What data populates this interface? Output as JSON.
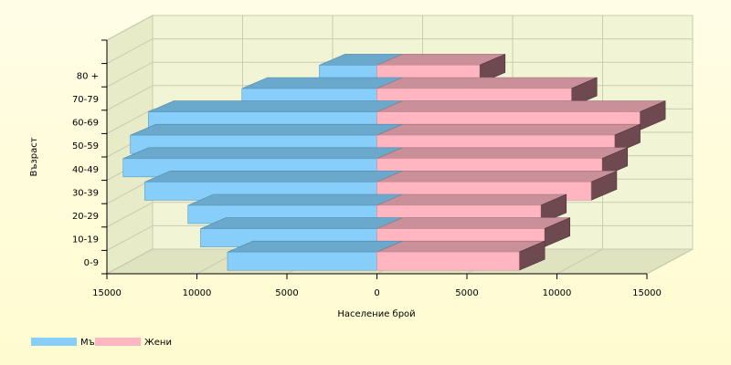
{
  "chart_data": {
    "type": "bar",
    "orientation": "horizontal",
    "style": "population-pyramid-3d",
    "categories": [
      "0-9",
      "10-19",
      "20-29",
      "30-39",
      "40-49",
      "50-59",
      "60-69",
      "70-79",
      "80 +"
    ],
    "series": [
      {
        "name": "Мъже",
        "values": [
          8300,
          9800,
          10500,
          12900,
          14100,
          13700,
          12700,
          7500,
          3200
        ]
      },
      {
        "name": "Жени",
        "values": [
          7900,
          9300,
          9100,
          11900,
          12500,
          13200,
          14600,
          10800,
          5700
        ]
      }
    ],
    "xlabel": "Население брой",
    "ylabel": "Възраст",
    "xticks": [
      "15000",
      "10000",
      "5000",
      "0",
      "5000",
      "10000",
      "15000"
    ],
    "xlim": [
      -15000,
      15000
    ],
    "grid": true,
    "legend_position": "bottom-left",
    "colors": {
      "male_front": "#87cefa",
      "male_top": "#6aa8cc",
      "female_front": "#ffb6c1",
      "female_top": "#c9909a",
      "female_side": "#6e4a50",
      "wall": "#f2f4d6",
      "grid": "#c8ccb0"
    }
  }
}
